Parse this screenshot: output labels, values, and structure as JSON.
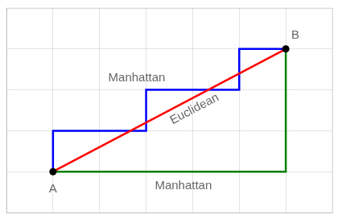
{
  "chart_data": {
    "type": "line",
    "series": [
      {
        "type": "line",
        "color": "green",
        "x": [
          1,
          6,
          6
        ],
        "values": [
          1,
          1,
          4
        ]
      },
      {
        "type": "line",
        "color": "blue",
        "x": [
          1,
          1,
          3,
          3,
          5,
          5,
          6
        ],
        "values": [
          1,
          2,
          2,
          3,
          3,
          4,
          4
        ]
      },
      {
        "type": "line",
        "color": "red",
        "x": [
          1,
          6
        ],
        "values": [
          1,
          4
        ]
      },
      {
        "type": "scatter",
        "color": "#000000",
        "marker": "circle",
        "x": [
          1,
          6
        ],
        "values": [
          1,
          4
        ]
      }
    ],
    "annotations": [
      {
        "text": "A",
        "x": 1,
        "y": 0.72
      },
      {
        "text": "B",
        "x": 6.12,
        "y": 4.18
      },
      {
        "text": "Euclidean",
        "x": 4.1,
        "y": 2.4
      },
      {
        "text": "Manhattan",
        "x": 2.8,
        "y": 3.3
      },
      {
        "text": "Manhattan",
        "x": 3.8,
        "y": 0.65
      }
    ],
    "xlim": [
      0,
      7
    ],
    "ylim": [
      0,
      5
    ],
    "xticks": [
      0,
      1,
      2,
      3,
      4,
      5,
      6,
      7
    ],
    "yticks": [
      0,
      1,
      2,
      3,
      4,
      5
    ],
    "grid": true,
    "tick_labels": false
  }
}
